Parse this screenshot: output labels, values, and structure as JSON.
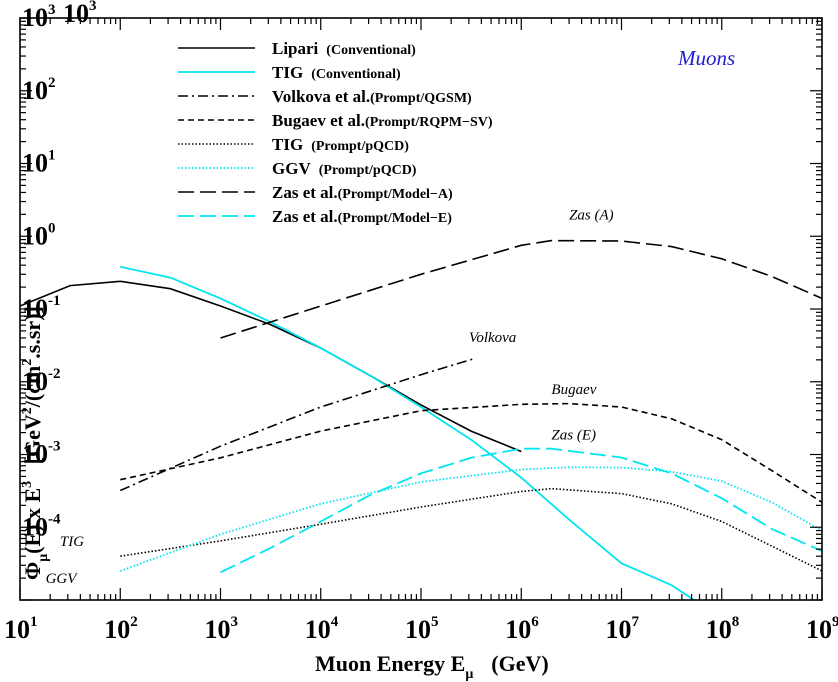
{
  "chart_data": {
    "type": "line",
    "xlabel": "Muon Energy  E",
    "xlabel_sub": "μ",
    "xlabel_unit": "(GeV)",
    "ylabel_parts": [
      "Φ",
      "μ",
      "(E) x E",
      "3",
      "   [GeV",
      "2",
      "/(cm",
      "2",
      ".s.sr)]"
    ],
    "x_scale": "log",
    "y_scale": "log",
    "xlim": [
      10,
      1000000000
    ],
    "ylim": [
      1e-05,
      1000
    ],
    "x_ticks": [
      {
        "base": "10",
        "exp": "1"
      },
      {
        "base": "10",
        "exp": "2"
      },
      {
        "base": "10",
        "exp": "3"
      },
      {
        "base": "10",
        "exp": "4"
      },
      {
        "base": "10",
        "exp": "5"
      },
      {
        "base": "10",
        "exp": "6"
      },
      {
        "base": "10",
        "exp": "7"
      },
      {
        "base": "10",
        "exp": "8"
      },
      {
        "base": "10",
        "exp": "9"
      }
    ],
    "y_ticks": [
      {
        "base": "10",
        "exp": "-4",
        "value": 0.0001
      },
      {
        "base": "10",
        "exp": "-3",
        "value": 0.001
      },
      {
        "base": "10",
        "exp": "-2",
        "value": 0.01
      },
      {
        "base": "10",
        "exp": "-1",
        "value": 0.1
      },
      {
        "base": "10",
        "exp": "0",
        "value": 1
      },
      {
        "base": "10",
        "exp": "1",
        "value": 10
      },
      {
        "base": "10",
        "exp": "2",
        "value": 100
      },
      {
        "base": "10",
        "exp": "3",
        "value": 1000
      }
    ],
    "grid": false,
    "legend_position": "top-left",
    "series": [
      {
        "name": "Lipari",
        "tag": "(Conventional)",
        "color": "#000000",
        "dash": "solid",
        "x": [
          10,
          31.6,
          100,
          316,
          1000,
          3160,
          10000,
          31600,
          100000,
          316000,
          1000000
        ],
        "y": [
          0.11,
          0.21,
          0.24,
          0.19,
          0.11,
          0.061,
          0.029,
          0.012,
          0.0048,
          0.0021,
          0.0011
        ]
      },
      {
        "name": "TIG",
        "tag": "(Conventional)",
        "color": "#00e5ee",
        "dash": "solid",
        "x": [
          100,
          316,
          1000,
          3160,
          10000,
          31600,
          100000,
          316000,
          1000000,
          3160000,
          10000000,
          31600000,
          53000000
        ],
        "y": [
          0.38,
          0.27,
          0.14,
          0.066,
          0.029,
          0.012,
          0.0045,
          0.0016,
          0.00048,
          0.00012,
          3.2e-05,
          1.6e-05,
          1e-05
        ]
      },
      {
        "name": "Volkova et al.",
        "tag": "(Prompt/QGSM)",
        "color": "#000000",
        "dash": "dashdot",
        "x": [
          100,
          1000,
          10000,
          100000,
          350000
        ],
        "y": [
          0.00032,
          0.0013,
          0.0045,
          0.0125,
          0.021
        ]
      },
      {
        "name": "Bugaev et al.",
        "tag": "(Prompt/RQPM−SV)",
        "color": "#000000",
        "dash": "shortdash",
        "x": [
          100,
          1000,
          10000,
          100000,
          1000000,
          3000000,
          10000000,
          31600000,
          100000000,
          316000000,
          1000000000
        ],
        "y": [
          0.00045,
          0.0009,
          0.0021,
          0.004,
          0.0049,
          0.005,
          0.0045,
          0.0031,
          0.0016,
          0.0006,
          0.00022
        ]
      },
      {
        "name": "TIG",
        "tag": "(Prompt/pQCD)",
        "color": "#000000",
        "dash": "dotted",
        "x": [
          100,
          1000,
          10000,
          100000,
          1000000,
          2000000,
          10000000,
          31600000,
          100000000,
          316000000,
          1000000000
        ],
        "y": [
          4e-05,
          6.5e-05,
          0.00011,
          0.00019,
          0.00031,
          0.00034,
          0.00029,
          0.00021,
          0.00012,
          5.5e-05,
          2.5e-05
        ]
      },
      {
        "name": "GGV",
        "tag": "(Prompt/pQCD)",
        "color": "#00e5ee",
        "dash": "dotted",
        "x": [
          100,
          1000,
          10000,
          100000,
          1000000,
          3000000,
          10000000,
          31600000,
          100000000,
          316000000,
          1000000000
        ],
        "y": [
          2.5e-05,
          8e-05,
          0.00021,
          0.00042,
          0.00062,
          0.00067,
          0.00066,
          0.00058,
          0.00043,
          0.00022,
          9e-05
        ]
      },
      {
        "name": "Zas et al.",
        "tag": "(Prompt/Model−A)",
        "color": "#000000",
        "dash": "longdash",
        "x": [
          1000,
          10000,
          100000,
          1000000,
          2000000,
          10000000,
          31600000,
          100000000,
          316000000,
          1000000000
        ],
        "y": [
          0.04,
          0.11,
          0.3,
          0.75,
          0.87,
          0.86,
          0.72,
          0.49,
          0.28,
          0.14
        ]
      },
      {
        "name": "Zas et al.",
        "tag": "(Prompt/Model−E)",
        "color": "#00e5ee",
        "dash": "longdash",
        "x": [
          1000,
          3160,
          10000,
          31600,
          100000,
          316000,
          1000000,
          2000000,
          10000000,
          31600000,
          100000000,
          316000000,
          1000000000
        ],
        "y": [
          2.4e-05,
          5.2e-05,
          0.00012,
          0.00028,
          0.00055,
          0.0009,
          0.0012,
          0.0012,
          0.00091,
          0.00055,
          0.00025,
          9.5e-05,
          4.7e-05
        ]
      }
    ],
    "annotations": [
      {
        "text": "Zas (A)",
        "x": 3000000,
        "y": 1.7
      },
      {
        "text": "Volkova",
        "x": 300000,
        "y": 0.035
      },
      {
        "text": "Bugaev",
        "x": 2000000,
        "y": 0.0068
      },
      {
        "text": "Zas (E)",
        "x": 2000000,
        "y": 0.0016
      },
      {
        "text": "TIG",
        "x": 25,
        "y": 5.5e-05
      },
      {
        "text": "GGV",
        "x": 18,
        "y": 1.7e-05
      }
    ],
    "inset_label": "Muons",
    "inset_label_color": "#1f1fd0"
  }
}
